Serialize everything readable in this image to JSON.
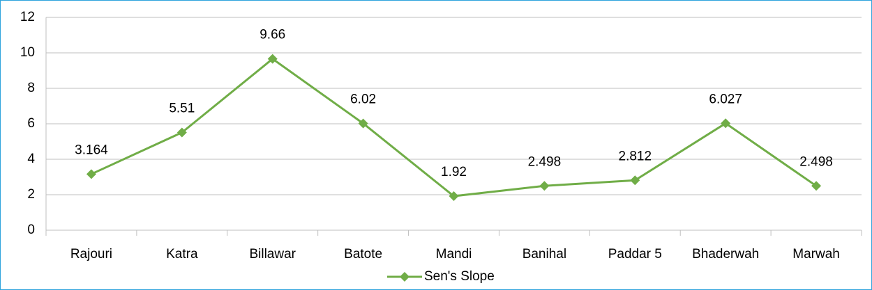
{
  "chart_data": {
    "type": "line",
    "categories": [
      "Rajouri",
      "Katra",
      "Billawar",
      "Batote",
      "Mandi",
      "Banihal",
      "Paddar 5",
      "Bhaderwah",
      "Marwah"
    ],
    "series": [
      {
        "name": "Sen's Slope",
        "color": "#70ad47",
        "values": [
          3.164,
          5.51,
          9.66,
          6.02,
          1.92,
          2.498,
          2.812,
          6.027,
          2.498
        ]
      }
    ],
    "ylim": [
      0,
      12
    ],
    "yticks": [
      0,
      2,
      4,
      6,
      8,
      10,
      12
    ],
    "grid": true,
    "legend": "bottom"
  }
}
